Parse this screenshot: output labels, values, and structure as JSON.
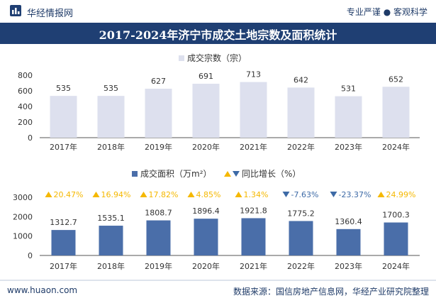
{
  "header": {
    "brand": "华经情报网",
    "slogan": "专业严谨 ● 客观科学"
  },
  "title": "2017-2024年济宁市成交土地宗数及面积统计",
  "footer": {
    "site": "www.huaon.com",
    "source": "数据来源：国信房地产信息网，华经产业研究院整理"
  },
  "chart_data": [
    {
      "type": "bar",
      "legend": "成交宗数（宗）",
      "categories": [
        "2017年",
        "2018年",
        "2019年",
        "2020年",
        "2021年",
        "2022年",
        "2023年",
        "2024年"
      ],
      "values": [
        535,
        535,
        627,
        691,
        713,
        642,
        531,
        652
      ],
      "ylim": [
        0,
        800
      ],
      "yticks": [
        0,
        200,
        400,
        600,
        800
      ],
      "color": "#dde0ee"
    },
    {
      "type": "bar",
      "legend": "成交面积（万m²）",
      "growth_legend": "同比增长（%）",
      "categories": [
        "2017年",
        "2018年",
        "2019年",
        "2020年",
        "2021年",
        "2022年",
        "2023年",
        "2024年"
      ],
      "values": [
        1312.7,
        1535.1,
        1808.7,
        1896.4,
        1921.8,
        1775.2,
        1360.4,
        1700.3
      ],
      "value_labels": [
        "1312.7",
        "1535.1",
        "1808.7",
        "1896.4",
        "1921.8",
        "1775.2",
        "1360.4",
        "1700.3"
      ],
      "growth": [
        20.47,
        16.94,
        17.82,
        4.85,
        1.34,
        -7.63,
        -23.37,
        24.99
      ],
      "growth_labels": [
        "20.47%",
        "16.94%",
        "17.82%",
        "4.85%",
        "1.34%",
        "-7.63%",
        "-23.37%",
        "24.99%"
      ],
      "ylim": [
        0,
        3000
      ],
      "yticks": [
        0,
        1000,
        2000,
        3000
      ],
      "color": "#4a6ea9",
      "up_color": "#f5b800",
      "down_color": "#3d6aa6"
    }
  ]
}
